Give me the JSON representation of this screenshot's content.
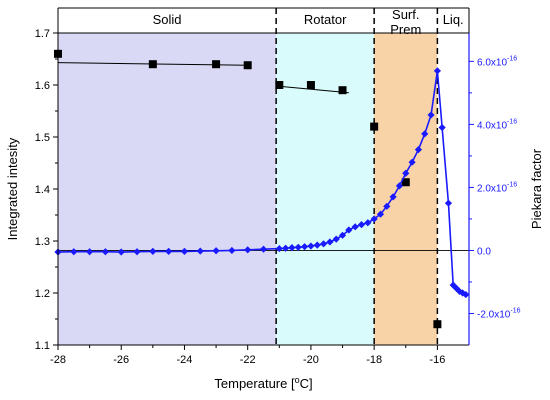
{
  "chart_data": {
    "type": "scatter",
    "xlabel": "Temperature [",
    "xlabel_sup": "o",
    "xlabel_tail": "C]",
    "ylabel_left": "Integrated intesity",
    "ylabel_right": "Piekara factor",
    "xlim": [
      -28,
      -15
    ],
    "ylim_left": [
      1.1,
      1.7
    ],
    "ylim_right": [
      -3e-16,
      6.9e-16
    ],
    "x_ticks": [
      -28,
      -26,
      -24,
      -22,
      -20,
      -18,
      -16
    ],
    "x_tick_labels": [
      "-28",
      "-26",
      "-24",
      "-22",
      "-20",
      "-18",
      "-16"
    ],
    "y_left_ticks": [
      1.1,
      1.2,
      1.3,
      1.4,
      1.5,
      1.6,
      1.7
    ],
    "y_left_tick_labels": [
      "1.1",
      "1.2",
      "1.3",
      "1.4",
      "1.5",
      "1.6",
      "1.7"
    ],
    "y_right_ticks": [
      -2e-16,
      0.0,
      2e-16,
      4e-16,
      6e-16
    ],
    "y_right_tick_labels": [
      {
        "base": "-2.0x10",
        "exp": "-16"
      },
      {
        "base": "0.0",
        "exp": ""
      },
      {
        "base": "2.0x10",
        "exp": "-16"
      },
      {
        "base": "4.0x10",
        "exp": "-16"
      },
      {
        "base": "6.0x10",
        "exp": "-16"
      }
    ],
    "phase_regions": [
      {
        "label": "Solid",
        "label2": "",
        "x_start": -28,
        "x_end": -21.1,
        "color": "#d9d9f5"
      },
      {
        "label": "Rotator",
        "label2": "",
        "x_start": -21.1,
        "x_end": -18,
        "color": "#d9fbfb"
      },
      {
        "label": "Surf.",
        "label2": "Prem",
        "x_start": -18,
        "x_end": -16,
        "color": "#f9d3a8"
      },
      {
        "label": "Liq.",
        "label2": "",
        "x_start": -16,
        "x_end": -15,
        "color": "#ffffff"
      }
    ],
    "phase_boundaries": [
      -21.1,
      -18,
      -16
    ],
    "series": [
      {
        "name": "",
        "axis": "left",
        "marker": "square",
        "color": "#000000",
        "x": [
          -28,
          -25,
          -23,
          -22,
          -21,
          -20,
          -19,
          -18,
          -17,
          -16
        ],
        "y": [
          1.66,
          1.64,
          1.64,
          1.638,
          1.6,
          1.6,
          1.59,
          1.52,
          1.413,
          1.14
        ]
      },
      {
        "name": "",
        "axis": "right",
        "marker": "diamond",
        "color": "#1a1aff",
        "x": [
          -28.0,
          -27.5,
          -27.0,
          -26.5,
          -26.0,
          -25.5,
          -25.0,
          -24.5,
          -24.0,
          -23.5,
          -23.0,
          -22.5,
          -22.0,
          -21.5,
          -21.0,
          -20.8,
          -20.6,
          -20.4,
          -20.2,
          -20.0,
          -19.8,
          -19.6,
          -19.4,
          -19.2,
          -19.0,
          -18.8,
          -18.6,
          -18.4,
          -18.2,
          -18.0,
          -17.8,
          -17.6,
          -17.4,
          -17.2,
          -17.0,
          -16.8,
          -16.6,
          -16.4,
          -16.2,
          -16.0,
          -15.85,
          -15.65,
          -15.5,
          -15.4,
          -15.3,
          -15.2,
          -15.1
        ],
        "y": [
          -5e-18,
          -4e-18,
          -4e-18,
          -4e-18,
          -5e-18,
          -4e-18,
          -3e-18,
          -3e-18,
          -3e-18,
          -2e-18,
          -1e-18,
          0.0,
          2e-18,
          4e-18,
          6e-18,
          7e-18,
          9e-18,
          1e-17,
          1.2e-17,
          1.4e-17,
          1.7e-17,
          2.1e-17,
          2.7e-17,
          3.6e-17,
          4.8e-17,
          6.5e-17,
          7.5e-17,
          8.2e-17,
          8.8e-17,
          1e-16,
          1.15e-16,
          1.4e-16,
          1.7e-16,
          2.05e-16,
          2.45e-16,
          2.8e-16,
          3.2e-16,
          3.7e-16,
          4.3e-16,
          5.7e-16,
          3.9e-16,
          1.5e-16,
          -1.1e-16,
          -1.2e-16,
          -1.3e-16,
          -1.35e-16,
          -1.4e-16
        ]
      }
    ],
    "fit_lines": [
      {
        "x": [
          -28,
          -22
        ],
        "y": [
          1.643,
          1.638
        ]
      },
      {
        "x": [
          -21.1,
          -18.8
        ],
        "y": [
          1.598,
          1.585
        ]
      }
    ],
    "zero_line_right": 0.0
  }
}
